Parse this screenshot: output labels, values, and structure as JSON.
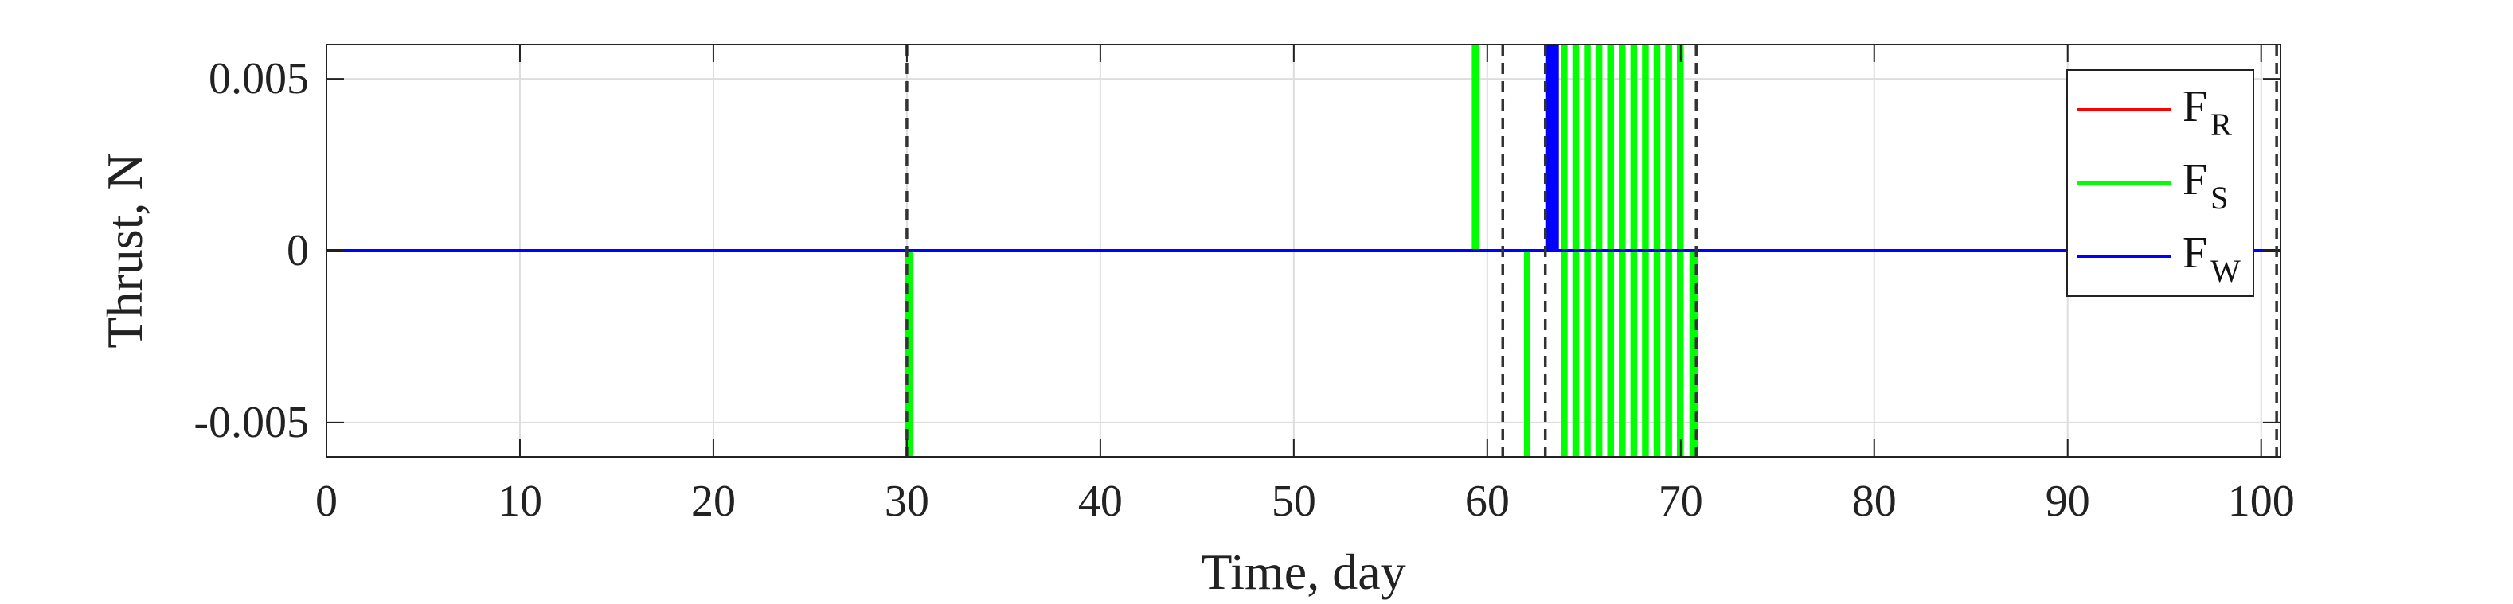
{
  "chart_data": {
    "type": "line",
    "xlabel": "Time, day",
    "ylabel": "Thrust, N",
    "xlim": [
      0,
      101
    ],
    "ylim": [
      -0.006,
      0.006
    ],
    "xticks": [
      0,
      10,
      20,
      30,
      40,
      50,
      60,
      70,
      80,
      90,
      100
    ],
    "xtick_labels": [
      "0",
      "10",
      "20",
      "30",
      "40",
      "50",
      "60",
      "70",
      "80",
      "90",
      "100"
    ],
    "yticks": [
      -0.005,
      0,
      0.005
    ],
    "ytick_labels": [
      "-0.005",
      "0",
      "0.005"
    ],
    "grid": true,
    "legend_position": "top-right",
    "colors": {
      "F_R": "#ff0000",
      "F_S": "#00ff00",
      "F_W": "#0000ff",
      "event": "#333333",
      "grid": "#dddddd"
    },
    "series": [
      {
        "name": "F_R",
        "label_main": "F",
        "label_sub": "R",
        "color": "#ff0000",
        "baseline": 0,
        "pulses": []
      },
      {
        "name": "F_S",
        "label_main": "F",
        "label_sub": "S",
        "color": "#00ff00",
        "baseline": 0,
        "pulses": [
          {
            "start": 29.9,
            "end": 30.3,
            "value": -0.006
          },
          {
            "start": 59.2,
            "end": 59.6,
            "value": 0.006
          },
          {
            "start": 61.9,
            "end": 62.2,
            "value": -0.006
          },
          {
            "start": 63.8,
            "end": 64.15,
            "value": 0.006
          },
          {
            "start": 64.4,
            "end": 64.75,
            "value": -0.006
          },
          {
            "start": 65.0,
            "end": 65.35,
            "value": 0.006
          },
          {
            "start": 65.6,
            "end": 65.95,
            "value": -0.006
          },
          {
            "start": 66.2,
            "end": 66.55,
            "value": 0.006
          },
          {
            "start": 66.8,
            "end": 67.15,
            "value": -0.006
          },
          {
            "start": 67.4,
            "end": 67.75,
            "value": 0.006
          },
          {
            "start": 68.0,
            "end": 68.35,
            "value": -0.006
          },
          {
            "start": 68.6,
            "end": 68.95,
            "value": 0.006
          },
          {
            "start": 69.2,
            "end": 69.55,
            "value": -0.006
          },
          {
            "start": 69.8,
            "end": 70.15,
            "value": 0.006
          },
          {
            "start": 70.45,
            "end": 70.9,
            "value": -0.006
          },
          {
            "start": 63.8,
            "end": 64.15,
            "value": -0.006
          },
          {
            "start": 65.0,
            "end": 65.35,
            "value": -0.006
          },
          {
            "start": 66.2,
            "end": 66.55,
            "value": -0.006
          },
          {
            "start": 67.4,
            "end": 67.75,
            "value": -0.006
          },
          {
            "start": 68.6,
            "end": 68.95,
            "value": -0.006
          },
          {
            "start": 69.8,
            "end": 70.15,
            "value": -0.006
          },
          {
            "start": 64.4,
            "end": 64.75,
            "value": 0.006
          },
          {
            "start": 65.6,
            "end": 65.95,
            "value": 0.006
          },
          {
            "start": 66.8,
            "end": 67.15,
            "value": 0.006
          },
          {
            "start": 68.0,
            "end": 68.35,
            "value": 0.006
          },
          {
            "start": 69.2,
            "end": 69.55,
            "value": 0.006
          }
        ]
      },
      {
        "name": "F_W",
        "label_main": "F",
        "label_sub": "W",
        "color": "#0000ff",
        "baseline": 0,
        "pulses": [
          {
            "start": 63.0,
            "end": 63.7,
            "value": 0.006
          }
        ]
      }
    ],
    "event_lines_x": [
      30.0,
      60.8,
      63.0,
      70.8,
      100.8
    ]
  }
}
